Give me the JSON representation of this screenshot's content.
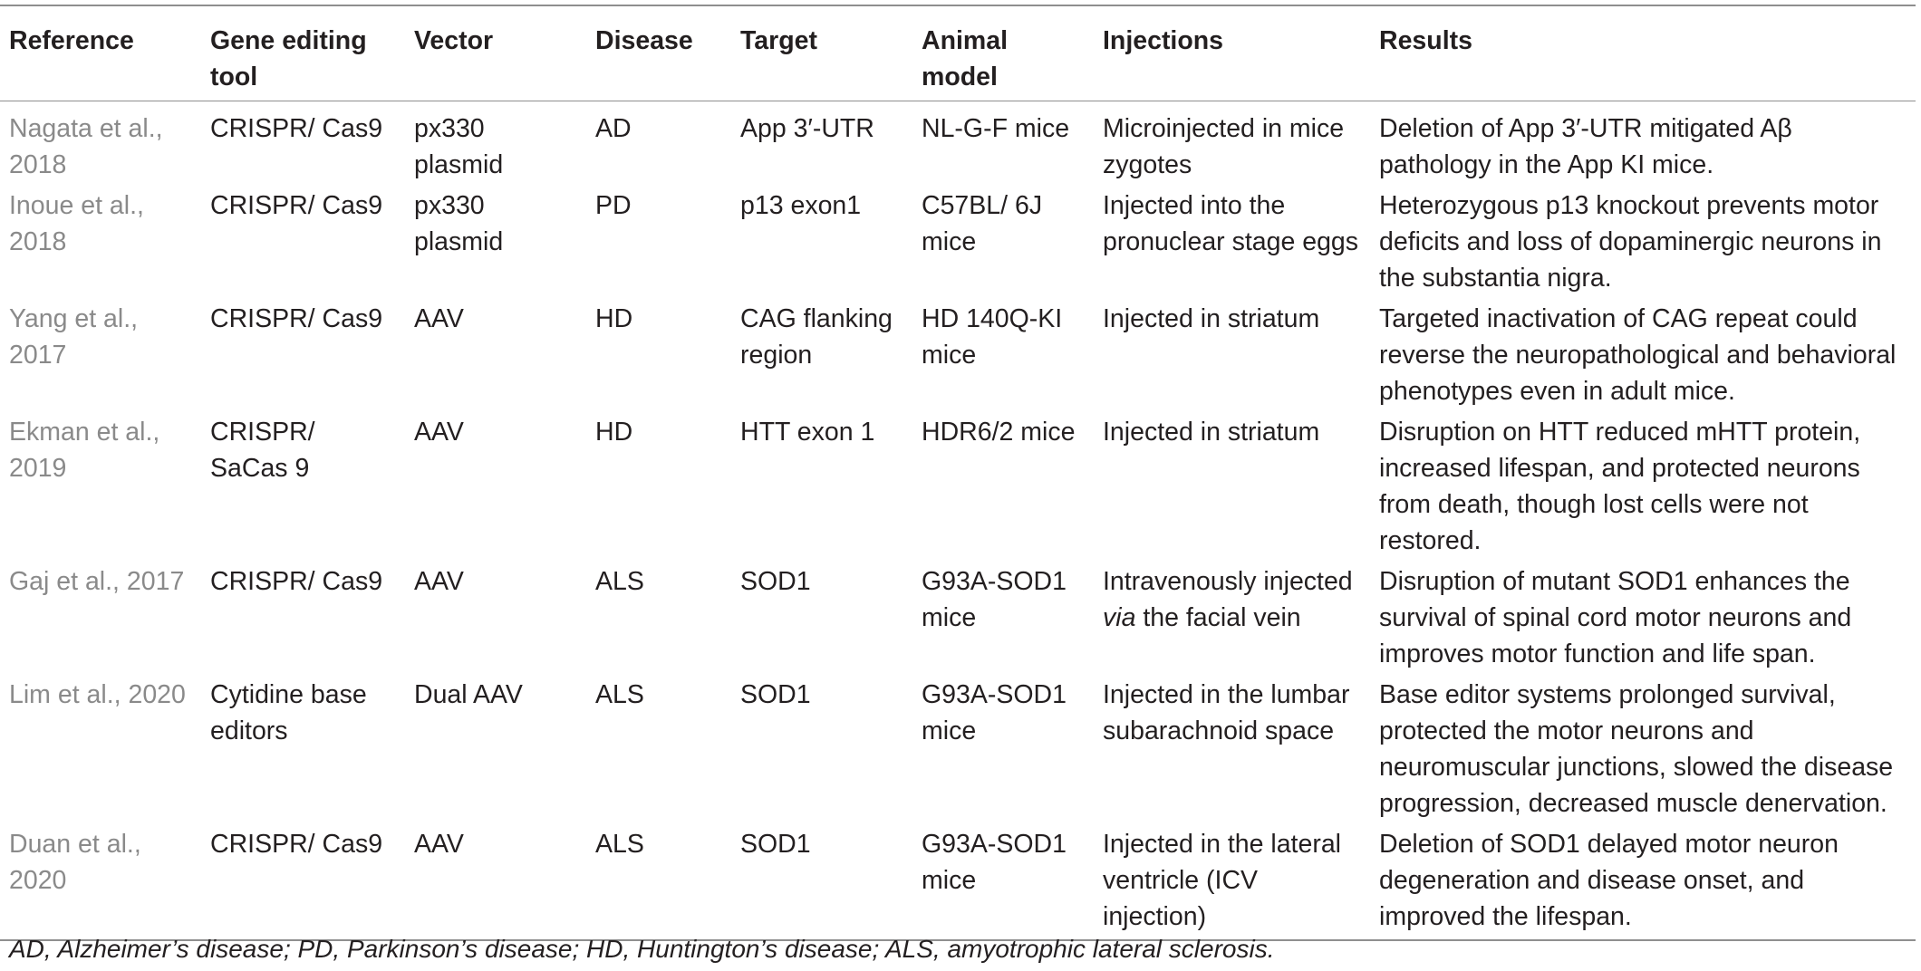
{
  "table": {
    "headers": [
      "Reference",
      "Gene editing tool",
      "Vector",
      "Disease",
      "Target",
      "Animal model",
      "Injections",
      "Results"
    ],
    "rows": [
      {
        "reference": "Nagata et al., 2018",
        "tool": "CRISPR/ Cas9",
        "vector": "px330 plasmid",
        "disease": "AD",
        "target": "App 3′-UTR",
        "model": "NL-G-F mice",
        "injections": "Microinjected in mice zygotes",
        "results": "Deletion of App 3′-UTR mitigated Aβ pathology in the App KI mice."
      },
      {
        "reference": "Inoue et al., 2018",
        "tool": "CRISPR/ Cas9",
        "vector": "px330 plasmid",
        "disease": "PD",
        "target": "p13 exon1",
        "model": "C57BL/ 6J mice",
        "injections": "Injected into the pronuclear stage eggs",
        "results": "Heterozygous p13 knockout prevents motor deficits and loss of dopaminergic neurons in the substantia nigra."
      },
      {
        "reference": "Yang et al., 2017",
        "tool": "CRISPR/ Cas9",
        "vector": "AAV",
        "disease": "HD",
        "target": "CAG flanking region",
        "model": "HD 140Q-KI mice",
        "injections": "Injected in striatum",
        "results": "Targeted inactivation of CAG repeat could reverse the neuropathological and behavioral phenotypes even in adult mice."
      },
      {
        "reference": "Ekman et al., 2019",
        "tool": "CRISPR/ SaCas 9",
        "vector": "AAV",
        "disease": "HD",
        "target": "HTT exon 1",
        "model": "HDR6/2 mice",
        "injections": "Injected in striatum",
        "results": "Disruption on HTT reduced mHTT protein, increased lifespan, and protected neurons from death, though lost cells were not restored."
      },
      {
        "reference": "Gaj et al., 2017",
        "tool": "CRISPR/ Cas9",
        "vector": "AAV",
        "disease": "ALS",
        "target": "SOD1",
        "model": "G93A-SOD1 mice",
        "injections_pre": "Intravenously injected ",
        "injections_em": "via",
        "injections_post": " the facial vein",
        "results": "Disruption of mutant SOD1 enhances the survival of spinal cord motor neurons and improves motor function and life span."
      },
      {
        "reference": "Lim et al., 2020",
        "tool": "Cytidine base editors",
        "vector": "Dual AAV",
        "disease": "ALS",
        "target": "SOD1",
        "model": "G93A-SOD1 mice",
        "injections": "Injected in the lumbar subarachnoid space",
        "results": "Base editor systems prolonged survival, protected the motor neurons and neuromuscular junctions, slowed the disease progression, decreased muscle denervation."
      },
      {
        "reference": "Duan et al., 2020",
        "tool": "CRISPR/ Cas9",
        "vector": "AAV",
        "disease": "ALS",
        "target": "SOD1",
        "model": "G93A-SOD1 mice",
        "injections": "Injected in the lateral ventricle (ICV injection)",
        "results": "Deletion of SOD1 delayed motor neuron degeneration and disease onset, and improved the lifespan."
      }
    ]
  },
  "footnote": "AD, Alzheimer’s disease; PD, Parkinson’s disease; HD, Huntington’s disease; ALS, amyotrophic lateral sclerosis."
}
